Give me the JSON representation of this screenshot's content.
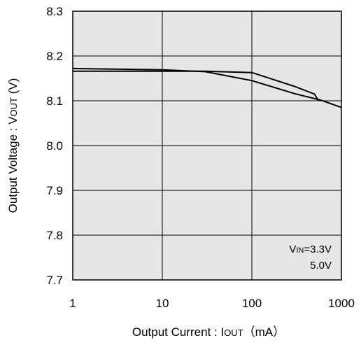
{
  "chart_data": {
    "type": "line",
    "xlabel_prefix": "Output Current : I",
    "xlabel_sub": "OUT",
    "xlabel_suffix": "（mA）",
    "ylabel_prefix": "Output Voltage : V",
    "ylabel_sub": "OUT",
    "ylabel_suffix": " (V)",
    "x_scale": "log",
    "xlim": [
      1,
      1000
    ],
    "ylim": [
      7.7,
      8.3
    ],
    "x_ticks": [
      1,
      10,
      100,
      1000
    ],
    "x_tick_labels": [
      "1",
      "10",
      "100",
      "1000"
    ],
    "y_ticks": [
      7.7,
      7.8,
      7.9,
      8.0,
      8.1,
      8.2,
      8.3
    ],
    "y_tick_labels": [
      "7.7",
      "7.8",
      "7.9",
      "8.0",
      "8.1",
      "8.2",
      "8.3"
    ],
    "grid": true,
    "plot_background": "#e6e6e6",
    "legend": {
      "placement": "bottom-right",
      "line1_prefix": "V",
      "line1_sub": "IN",
      "line1_value": "=3.3V",
      "line2": "5.0V"
    },
    "series": [
      {
        "color": "#000000",
        "x": [
          1,
          10,
          30,
          100,
          300,
          500,
          550
        ],
        "y": [
          8.166,
          8.166,
          8.166,
          8.163,
          8.132,
          8.115,
          8.101
        ]
      },
      {
        "color": "#000000",
        "x": [
          1,
          10,
          30,
          100,
          300,
          600,
          1000
        ],
        "y": [
          8.172,
          8.169,
          8.165,
          8.145,
          8.116,
          8.101,
          8.085
        ]
      }
    ]
  }
}
